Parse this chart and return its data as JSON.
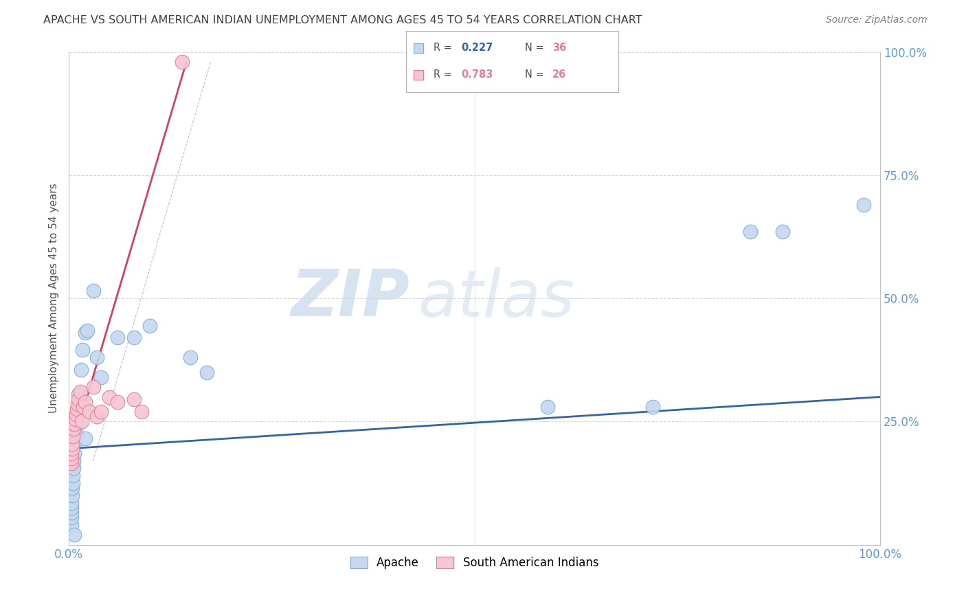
{
  "title": "APACHE VS SOUTH AMERICAN INDIAN UNEMPLOYMENT AMONG AGES 45 TO 54 YEARS CORRELATION CHART",
  "source": "Source: ZipAtlas.com",
  "ylabel": "Unemployment Among Ages 45 to 54 years",
  "xlim": [
    0,
    1.0
  ],
  "ylim": [
    0,
    1.0
  ],
  "watermark": "ZIPatlas",
  "apache_color": "#c5d8f0",
  "apache_edge_color": "#7badd4",
  "sa_indian_color": "#f5c6d4",
  "sa_indian_edge_color": "#e87a96",
  "apache_R": 0.227,
  "apache_N": 36,
  "sa_indian_R": 0.783,
  "sa_indian_N": 26,
  "apache_line_color": "#3464a8",
  "sa_indian_line_color": "#d44060",
  "background_color": "#ffffff",
  "grid_color": "#d8d8d8",
  "apache_points_x": [
    0.003,
    0.003,
    0.003,
    0.003,
    0.003,
    0.004,
    0.004,
    0.005,
    0.005,
    0.006,
    0.006,
    0.007,
    0.007,
    0.008,
    0.009,
    0.01,
    0.011,
    0.012,
    0.015,
    0.017,
    0.02,
    0.023,
    0.03,
    0.035,
    0.04,
    0.06,
    0.08,
    0.1,
    0.15,
    0.17,
    0.02,
    0.59,
    0.72,
    0.84,
    0.88,
    0.98
  ],
  "apache_points_y": [
    0.04,
    0.055,
    0.065,
    0.075,
    0.085,
    0.1,
    0.115,
    0.125,
    0.14,
    0.155,
    0.17,
    0.02,
    0.185,
    0.21,
    0.225,
    0.245,
    0.27,
    0.305,
    0.355,
    0.395,
    0.43,
    0.435,
    0.515,
    0.38,
    0.34,
    0.42,
    0.42,
    0.445,
    0.38,
    0.35,
    0.215,
    0.28,
    0.28,
    0.635,
    0.635,
    0.69
  ],
  "sa_indian_points_x": [
    0.003,
    0.003,
    0.003,
    0.004,
    0.004,
    0.005,
    0.006,
    0.007,
    0.008,
    0.009,
    0.01,
    0.011,
    0.012,
    0.014,
    0.016,
    0.018,
    0.02,
    0.025,
    0.03,
    0.035,
    0.04,
    0.05,
    0.06,
    0.08,
    0.09,
    0.14
  ],
  "sa_indian_points_y": [
    0.165,
    0.175,
    0.185,
    0.195,
    0.205,
    0.22,
    0.235,
    0.245,
    0.255,
    0.265,
    0.275,
    0.285,
    0.295,
    0.31,
    0.25,
    0.28,
    0.29,
    0.27,
    0.32,
    0.26,
    0.27,
    0.3,
    0.29,
    0.295,
    0.27,
    0.98
  ],
  "apache_trendline_x": [
    0.0,
    1.0
  ],
  "apache_trendline_y": [
    0.195,
    0.3
  ],
  "sa_trendline_x": [
    0.0,
    0.145
  ],
  "sa_trendline_y": [
    0.175,
    0.98
  ],
  "ref_line_x": [
    0.03,
    0.175
  ],
  "ref_line_y": [
    0.17,
    0.98
  ]
}
